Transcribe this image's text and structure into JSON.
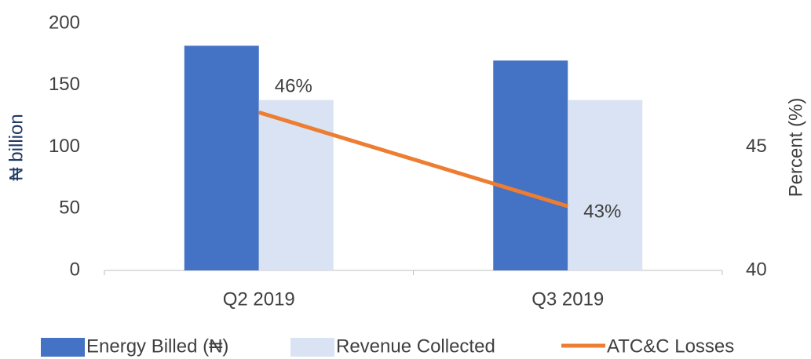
{
  "chart_data": {
    "type": "bar_line",
    "categories": [
      "Q2 2019",
      "Q3 2019"
    ],
    "ylabel": "₦ billion",
    "y2label": "Percent (%)",
    "ylim": [
      0,
      200
    ],
    "yticks": [
      0,
      50,
      100,
      150,
      200
    ],
    "y2lim": [
      40,
      50
    ],
    "y2ticks": [
      40,
      45
    ],
    "series": [
      {
        "name": "Energy Billed (₦)",
        "type": "bar",
        "color": "#4472c4",
        "values": [
          182,
          170
        ]
      },
      {
        "name": "Revenue Collected",
        "type": "bar",
        "color": "#dae3f3",
        "values": [
          138,
          138
        ]
      },
      {
        "name": "ATC&C Losses",
        "type": "line",
        "axis": "y2",
        "color": "#ed7d31",
        "values": [
          46.4,
          42.6
        ],
        "value_labels": [
          "46%",
          "43%"
        ]
      }
    ],
    "legend": "bottom"
  }
}
